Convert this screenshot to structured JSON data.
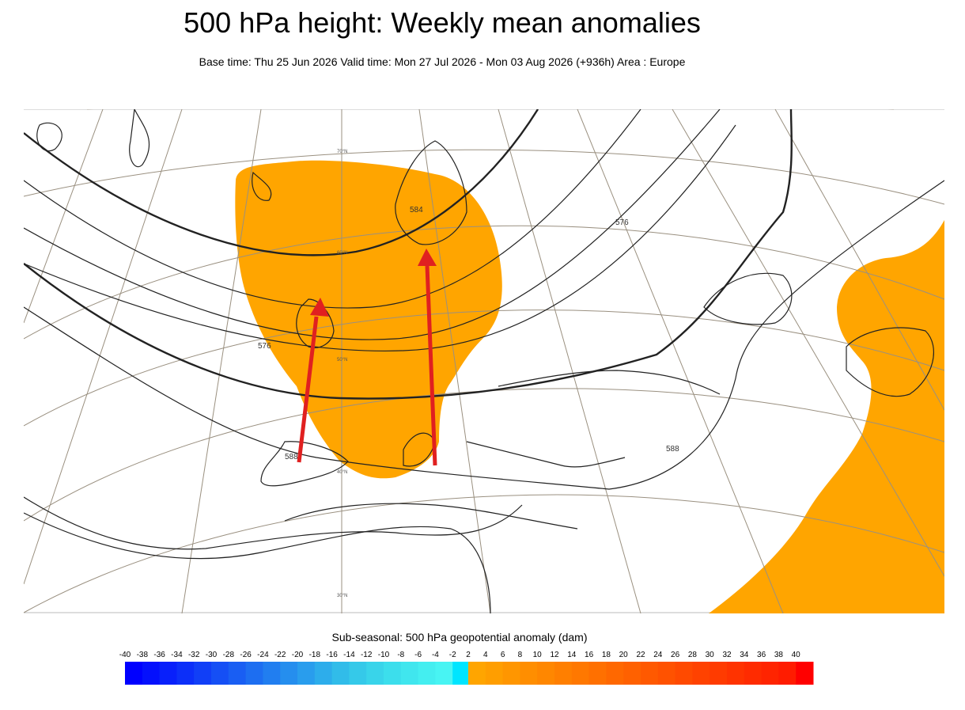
{
  "title": "500 hPa height: Weekly mean anomalies",
  "subtitle": "Base time: Thu 25 Jun 2026 Valid time: Mon 27 Jul 2026 - Mon 03 Aug 2026 (+936h) Area : Europe",
  "map": {
    "contour_labels": [
      "576",
      "576",
      "584",
      "588",
      "588"
    ],
    "latitude_labels": [
      "70°N",
      "60°N",
      "50°N",
      "40°N",
      "30°N"
    ],
    "colors": {
      "positive_anomaly_shading": "#FFA500",
      "arrows": "#E02020",
      "contours": "#000000",
      "graticule": "#9a9080",
      "coastlines": "#000000"
    }
  },
  "legend": {
    "title": "Sub-seasonal: 500 hPa geopotential anomaly (dam)",
    "negative_ticks": [
      "-40",
      "-38",
      "-36",
      "-34",
      "-32",
      "-30",
      "-28",
      "-26",
      "-24",
      "-22",
      "-20",
      "-18",
      "-16",
      "-14",
      "-12",
      "-10",
      "-8",
      "-6",
      "-4",
      "-2"
    ],
    "positive_ticks": [
      "2",
      "4",
      "6",
      "8",
      "10",
      "12",
      "14",
      "16",
      "18",
      "20",
      "22",
      "24",
      "26",
      "28",
      "30",
      "32",
      "34",
      "36",
      "38",
      "40"
    ],
    "negative_colors": [
      "#0000ff",
      "#0410fd",
      "#0820fb",
      "#0c2ff9",
      "#113ff7",
      "#154ff5",
      "#195ef3",
      "#1d6ef1",
      "#217ef0",
      "#258eee",
      "#299ded",
      "#2dadeb",
      "#31bce9",
      "#35c9e9",
      "#39d4ea",
      "#3cdeec",
      "#40e6ee",
      "#44eef0",
      "#48f4f3",
      "#00e5ff"
    ],
    "positive_colors": [
      "#ffa500",
      "#ff9e00",
      "#ff9600",
      "#ff8e00",
      "#ff8700",
      "#ff7f00",
      "#ff7800",
      "#ff7000",
      "#ff6800",
      "#ff6100",
      "#ff5900",
      "#ff5200",
      "#ff4a00",
      "#ff4200",
      "#ff3b00",
      "#ff3300",
      "#ff2b00",
      "#ff2400",
      "#ff1c00",
      "#ff0000"
    ]
  }
}
